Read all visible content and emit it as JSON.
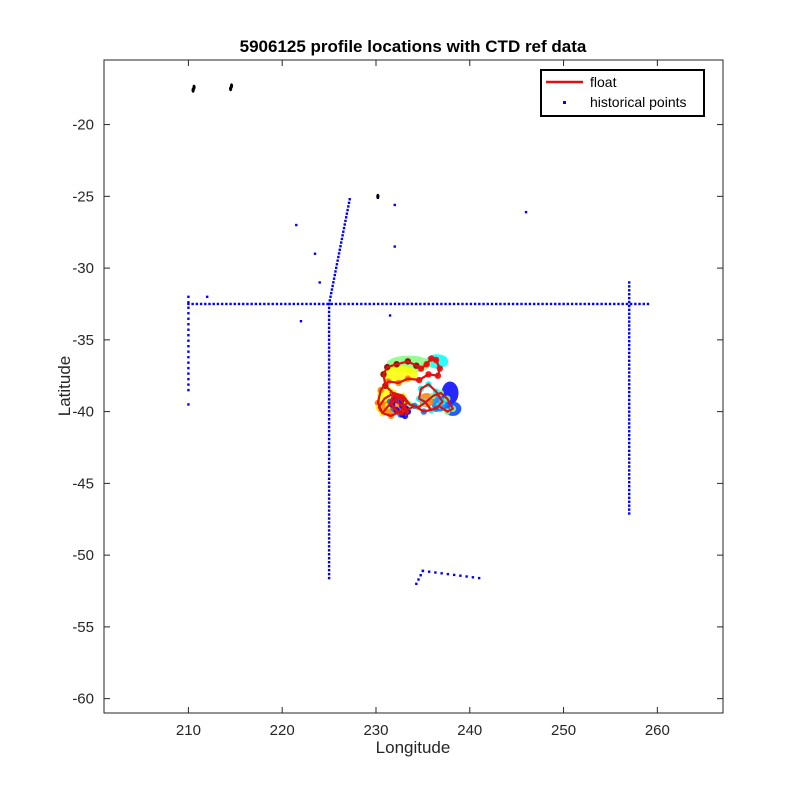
{
  "chart_data": {
    "type": "scatter",
    "title": "5906125 profile locations with CTD ref data",
    "xlabel": "Longitude",
    "ylabel": "Latitude",
    "xlim": [
      201,
      267
    ],
    "ylim": [
      -61,
      -15.5
    ],
    "xticks": [
      210,
      220,
      230,
      240,
      250,
      260
    ],
    "yticks": [
      -20,
      -25,
      -30,
      -35,
      -40,
      -45,
      -50,
      -55,
      -60
    ],
    "xtick_labels": [
      "210",
      "220",
      "230",
      "240",
      "250",
      "260"
    ],
    "ytick_labels": [
      "-20",
      "-25",
      "-30",
      "-35",
      "-40",
      "-45",
      "-50",
      "-55",
      "-60"
    ],
    "grid": false,
    "legend": {
      "position": "top-right",
      "entries": [
        {
          "label": "float",
          "color": "#e01010",
          "marker": "line"
        },
        {
          "label": "historical points",
          "color": "#0000ff",
          "marker": "dot"
        }
      ]
    },
    "colors": {
      "float": "#e01010",
      "historical": "#0000ff",
      "coast": "#000000",
      "profile_colormap": [
        "#0000ff",
        "#0080ff",
        "#00ffff",
        "#80ff80",
        "#ffff00",
        "#ff8000",
        "#ff0000",
        "#800000"
      ]
    },
    "series": [
      {
        "name": "historical points",
        "lines": [
          {
            "from": [
              210,
              -32.5
            ],
            "to": [
              259,
              -32.5
            ],
            "n": 110
          },
          {
            "from": [
              225,
              -32.5
            ],
            "to": [
              225,
              -51.6
            ],
            "n": 70
          },
          {
            "from": [
              257,
              -31
            ],
            "to": [
              257,
              -47.1
            ],
            "n": 60
          },
          {
            "from": [
              225,
              -32.5
            ],
            "to": [
              227.2,
              -25.2
            ],
            "n": 30
          },
          {
            "from": [
              210,
              -32
            ],
            "to": [
              210,
              -38.5
            ],
            "n": 18
          },
          {
            "from": [
              235,
              -51.1
            ],
            "to": [
              241,
              -51.6
            ],
            "n": 10
          },
          {
            "from": [
              234.3,
              -52
            ],
            "to": [
              235,
              -51.1
            ],
            "n": 4
          }
        ],
        "points": [
          [
            210,
            -39.5
          ],
          [
            221.5,
            -27
          ],
          [
            223.5,
            -29
          ],
          [
            224,
            -31
          ],
          [
            222,
            -33.7
          ],
          [
            231.5,
            -33.3
          ],
          [
            232,
            -25.6
          ],
          [
            232,
            -28.5
          ],
          [
            246,
            -26.1
          ],
          [
            212,
            -32
          ],
          [
            230.2,
            -25.1
          ]
        ]
      },
      {
        "name": "coast",
        "points": [
          [
            210.5,
            -17.6
          ],
          [
            210.6,
            -17.4
          ],
          [
            214.6,
            -17.3
          ],
          [
            214.5,
            -17.5
          ],
          [
            230.2,
            -25.0
          ]
        ]
      },
      {
        "name": "float",
        "x": [
          233,
          231.8,
          231,
          230.8,
          231.2,
          232.2,
          233.4,
          234.3,
          234.8,
          235.4,
          235.9,
          236.4,
          236.8,
          236.6,
          235.6,
          234.6,
          233.4,
          232.4,
          231.3,
          230.5,
          230.2,
          230.7,
          231.6,
          232.6,
          233.3,
          232.9,
          232.1,
          231.3,
          230.7,
          230.3,
          230.9,
          231.9,
          232.9,
          233.6,
          234.5,
          235.2,
          236.1,
          236.9,
          237.6,
          238.2,
          237.6,
          236.7,
          235.9,
          235.2,
          234.6,
          234.8,
          235.6,
          236.4,
          237.1,
          236.4,
          235.1,
          234.1,
          233.3,
          232.6,
          231.9,
          231.5,
          231.9,
          232.7,
          233.2,
          232.8,
          232.2,
          231.7,
          232,
          232.8,
          233.4,
          233.1
        ],
        "y": [
          -39.2,
          -38.7,
          -38.2,
          -37.4,
          -36.9,
          -36.7,
          -36.5,
          -36.8,
          -37.0,
          -36.7,
          -36.3,
          -36.4,
          -37.0,
          -37.5,
          -37.4,
          -37.8,
          -37.7,
          -38.0,
          -37.9,
          -38.5,
          -39.4,
          -40.1,
          -40.3,
          -40.0,
          -39.4,
          -38.9,
          -39.1,
          -39.6,
          -40.1,
          -39.7,
          -39.1,
          -38.7,
          -38.9,
          -39.5,
          -39.7,
          -39.4,
          -38.9,
          -38.7,
          -39.1,
          -39.8,
          -40.0,
          -39.6,
          -39.9,
          -39.3,
          -39.1,
          -38.4,
          -38.1,
          -38.6,
          -39.3,
          -39.8,
          -40.0,
          -39.6,
          -39.9,
          -40.2,
          -39.8,
          -39.3,
          -38.9,
          -39.2,
          -39.8,
          -40.2,
          -39.9,
          -39.5,
          -39.2,
          -39.6,
          -40.0,
          -40.3
        ]
      }
    ]
  }
}
